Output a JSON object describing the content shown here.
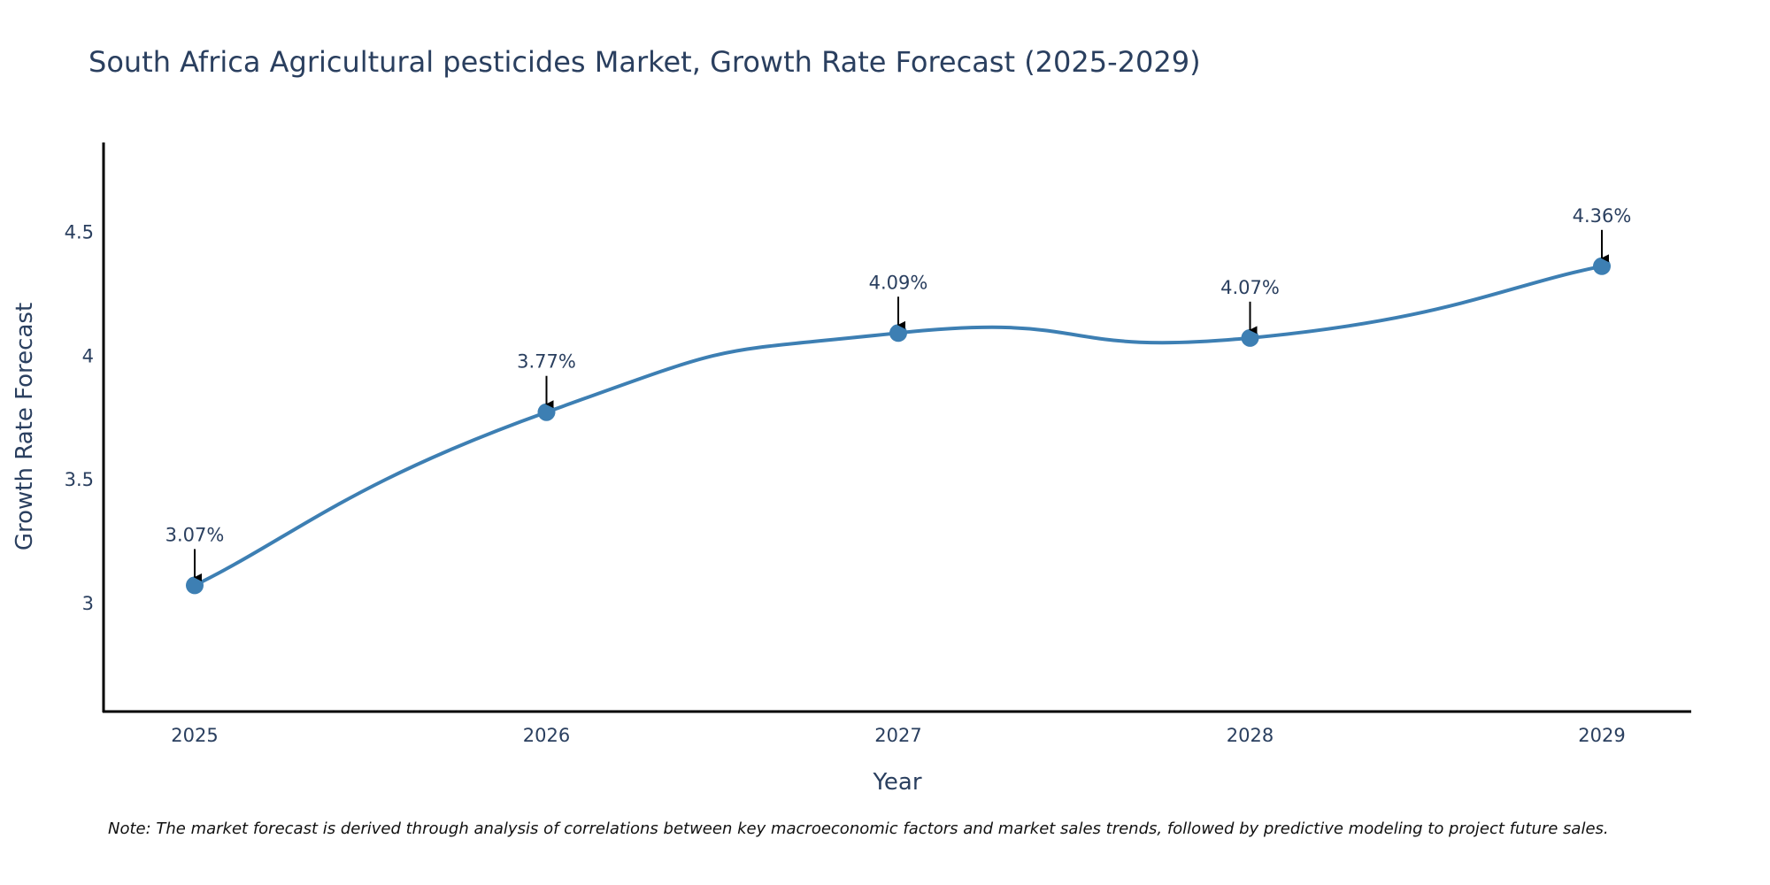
{
  "chart_data": {
    "type": "line",
    "title": "South Africa Agricultural pesticides Market, Growth Rate Forecast (2025-2029)",
    "xlabel": "Year",
    "ylabel": "Growth Rate Forecast",
    "categories": [
      "2025",
      "2026",
      "2027",
      "2028",
      "2029"
    ],
    "series": [
      {
        "name": "Growth Rate Forecast",
        "values": [
          3.07,
          3.77,
          4.09,
          4.07,
          4.36
        ]
      }
    ],
    "data_labels": [
      "3.07%",
      "3.77%",
      "4.09%",
      "4.07%",
      "4.36%"
    ],
    "ylim": [
      2.56,
      4.86
    ],
    "yticks": [
      3,
      3.5,
      4,
      4.5
    ],
    "ytick_labels": [
      "3",
      "3.5",
      "4",
      "4.5"
    ],
    "line_shape": "spline",
    "grid": false,
    "colors": {
      "line": "#3d7fb3",
      "marker": "#3d7fb3",
      "axis": "#000000",
      "text": "#2a3f5f",
      "arrow": "#000000"
    },
    "note": "Note: The market forecast is derived through analysis of correlations between key macroeconomic factors and market sales trends, followed by predictive modeling to project future sales."
  }
}
